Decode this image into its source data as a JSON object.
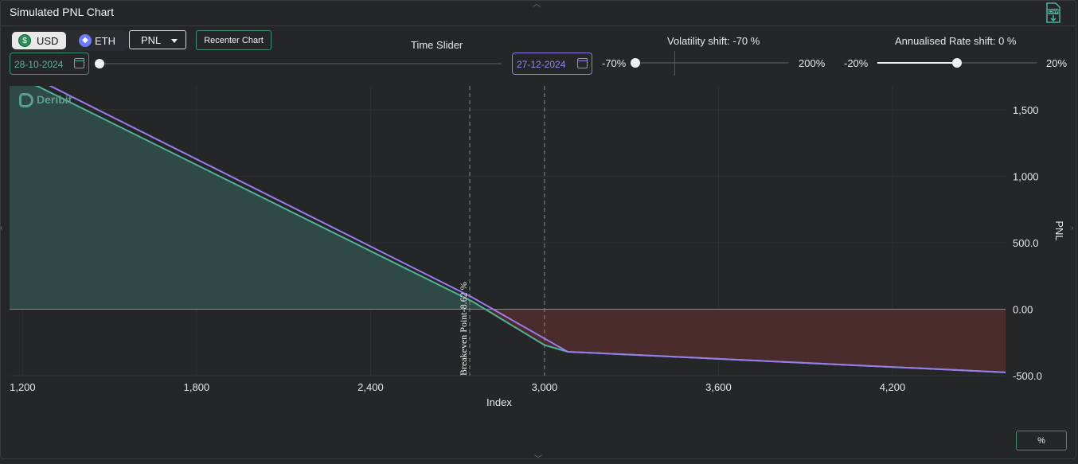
{
  "window": {
    "title": "Simulated PNL Chart",
    "csv_icon": "csv-download-icon"
  },
  "controls": {
    "currency": {
      "options": [
        "USD",
        "ETH"
      ],
      "selected": "USD"
    },
    "metric_select": {
      "value": "PNL"
    },
    "recenter_label": "Recenter Chart",
    "time_slider": {
      "label": "Time Slider",
      "start_date": "28-10-2024",
      "end_date": "27-12-2024",
      "position": 0.0
    },
    "volatility": {
      "label": "Volatility shift: -70 %",
      "min_label": "-70%",
      "max_label": "200%",
      "min": -70,
      "max": 200,
      "value": -70,
      "zero_marker": 0
    },
    "rate": {
      "label": "Annualised Rate shift: 0 %",
      "min_label": "-20%",
      "max_label": "20%",
      "min": -20,
      "max": 20,
      "value": 0
    },
    "percent_button": "%"
  },
  "watermark": "Deribit",
  "colors": {
    "profit": "#2f4a45",
    "loss": "#4a2c2c",
    "line_now": "#4fb39a",
    "line_exp": "#9a7cf0",
    "accent": "#3e8e76"
  },
  "chart_data": {
    "type": "line",
    "xlabel": "Index",
    "ylabel": "PNL",
    "xlim": [
      1155,
      4590
    ],
    "ylim": [
      -500,
      1680
    ],
    "x_ticks": [
      "1,200",
      "1,800",
      "2,400",
      "3,000",
      "3,600",
      "4,200"
    ],
    "x_tick_values": [
      1200,
      1800,
      2400,
      3000,
      3600,
      4200
    ],
    "y_ticks": [
      "1,500",
      "1,000",
      "500.0",
      "0.00",
      "-500.0"
    ],
    "y_tick_values": [
      1500,
      1000,
      500,
      0,
      -500
    ],
    "series": [
      {
        "x": [
          1155,
          1250,
          2750,
          3000,
          3080,
          4590
        ],
        "y": [
          1740,
          1680,
          60,
          -270,
          -320,
          -475
        ]
      },
      {
        "x": [
          1155,
          1250,
          2750,
          3080,
          4590
        ],
        "y": [
          1790,
          1730,
          90,
          -320,
          -475
        ]
      }
    ],
    "annotations": [
      {
        "text": "Breakeven Point-8.62 %",
        "x": 2742
      }
    ],
    "reference_lines_x": [
      2742,
      3000
    ]
  }
}
